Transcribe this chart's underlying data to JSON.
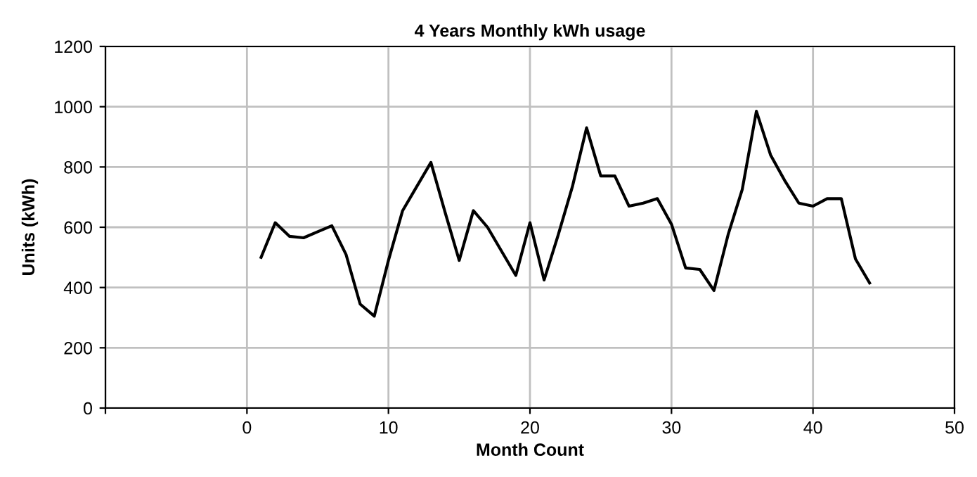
{
  "chart_data": {
    "type": "line",
    "title": "4 Years Monthly kWh usage",
    "xlabel": "Month Count",
    "ylabel": "Units (kWh)",
    "x": [
      1,
      2,
      3,
      4,
      5,
      6,
      7,
      8,
      9,
      10,
      11,
      12,
      13,
      14,
      15,
      16,
      17,
      18,
      19,
      20,
      21,
      22,
      23,
      24,
      25,
      26,
      27,
      28,
      29,
      30,
      31,
      32,
      33,
      34,
      35,
      36,
      37,
      38,
      39,
      40,
      41,
      42,
      43,
      44
    ],
    "series": [
      {
        "color": "#000000",
        "values": [
          500,
          615,
          570,
          565,
          585,
          605,
          510,
          345,
          305,
          490,
          655,
          735,
          815,
          650,
          490,
          655,
          600,
          520,
          440,
          615,
          425,
          575,
          735,
          930,
          770,
          770,
          670,
          680,
          695,
          610,
          465,
          460,
          390,
          575,
          725,
          985,
          840,
          755,
          680,
          670,
          695,
          695,
          495,
          415
        ]
      }
    ],
    "xlim": [
      -10,
      50
    ],
    "xticks": [
      {
        "value": -10,
        "label": null
      },
      0,
      10,
      20,
      30,
      40,
      50
    ],
    "ylim": [
      0,
      1200
    ],
    "yticks": [
      0,
      200,
      400,
      600,
      800,
      1000,
      1200
    ],
    "grid": true,
    "legend": false,
    "marker": "none",
    "line_style": "solid"
  }
}
